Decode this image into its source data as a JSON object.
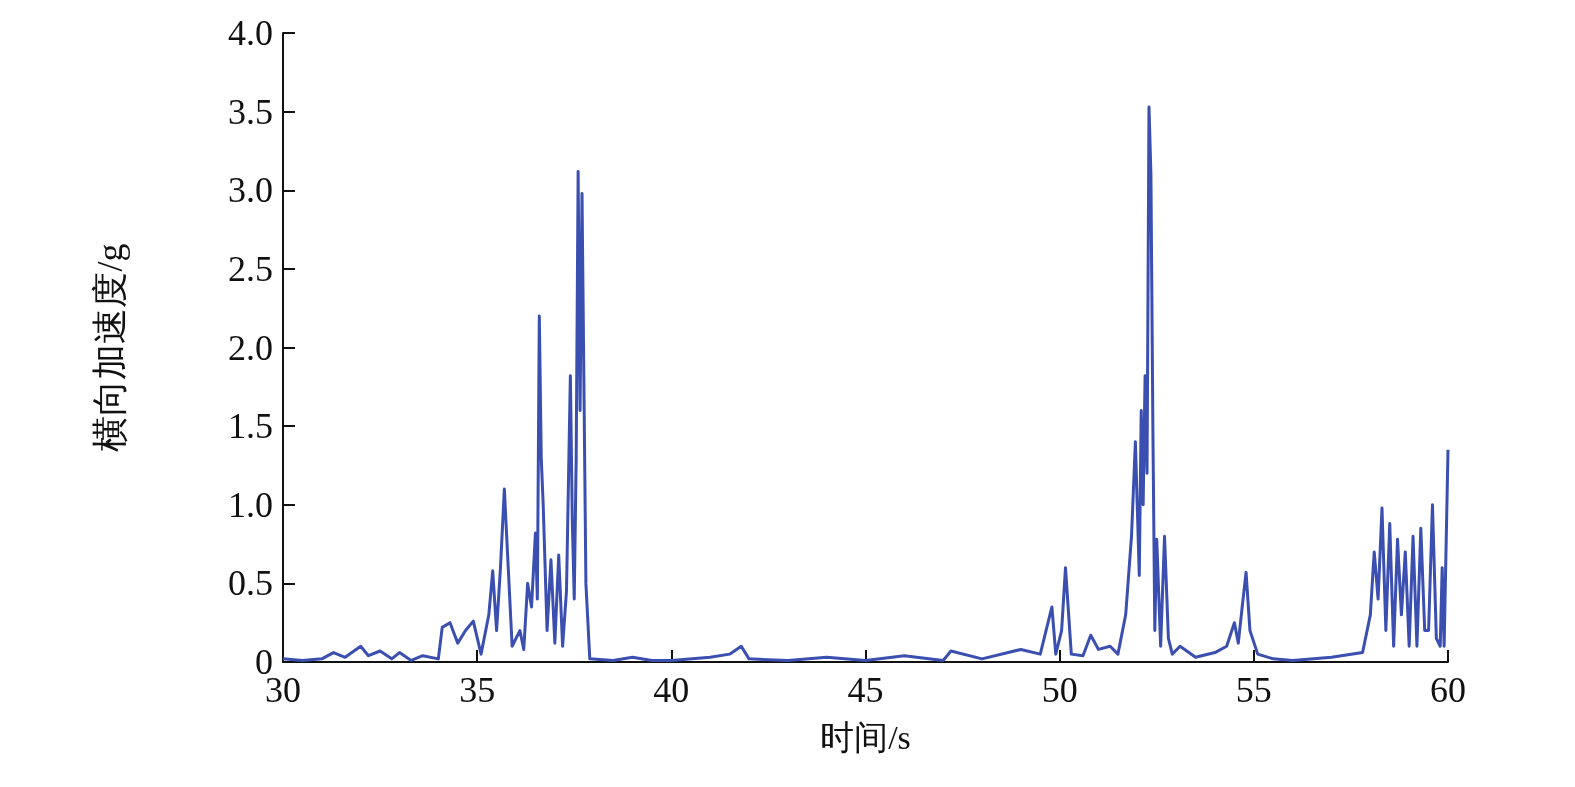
{
  "chart_data": {
    "type": "line",
    "xlabel": "时间/s",
    "ylabel": "横向加速度/g",
    "x": [
      30,
      30.5,
      31,
      31.3,
      31.6,
      32,
      32.2,
      32.5,
      32.8,
      33,
      33.3,
      33.6,
      34,
      34.1,
      34.3,
      34.5,
      34.7,
      34.9,
      35.1,
      35.3,
      35.4,
      35.5,
      35.6,
      35.7,
      35.8,
      35.9,
      36.1,
      36.2,
      36.3,
      36.4,
      36.5,
      36.55,
      36.6,
      36.65,
      36.7,
      36.8,
      36.9,
      37,
      37.1,
      37.2,
      37.3,
      37.4,
      37.45,
      37.5,
      37.55,
      37.6,
      37.65,
      37.7,
      37.8,
      37.9,
      38.5,
      39,
      39.5,
      40,
      41,
      41.5,
      41.8,
      42,
      43,
      44,
      45,
      46,
      47,
      47.2,
      48,
      49,
      49.5,
      49.7,
      49.8,
      49.9,
      50.05,
      50.15,
      50.3,
      50.6,
      50.8,
      51,
      51.3,
      51.5,
      51.7,
      51.85,
      51.95,
      52.05,
      52.1,
      52.15,
      52.2,
      52.25,
      52.3,
      52.35,
      52.4,
      52.45,
      52.5,
      52.6,
      52.7,
      52.8,
      52.9,
      53.1,
      53.5,
      54,
      54.3,
      54.5,
      54.6,
      54.7,
      54.8,
      54.9,
      55.1,
      55.5,
      56,
      57,
      57.8,
      58,
      58.1,
      58.2,
      58.3,
      58.4,
      58.5,
      58.6,
      58.7,
      58.8,
      58.9,
      59,
      59.1,
      59.2,
      59.3,
      59.4,
      59.5,
      59.6,
      59.7,
      59.8,
      59.85,
      59.9,
      60
    ],
    "series": [
      {
        "color": "#3a4fb0",
        "values": [
          0.02,
          0.01,
          0.02,
          0.06,
          0.03,
          0.1,
          0.04,
          0.07,
          0.02,
          0.06,
          0.01,
          0.04,
          0.02,
          0.22,
          0.25,
          0.12,
          0.2,
          0.26,
          0.05,
          0.3,
          0.58,
          0.2,
          0.6,
          1.1,
          0.6,
          0.1,
          0.2,
          0.08,
          0.5,
          0.35,
          0.82,
          0.4,
          2.2,
          1.3,
          1.0,
          0.2,
          0.65,
          0.12,
          0.68,
          0.1,
          0.45,
          1.82,
          0.9,
          0.4,
          1.3,
          3.12,
          1.6,
          2.98,
          0.5,
          0.02,
          0.01,
          0.03,
          0.01,
          0.01,
          0.03,
          0.05,
          0.1,
          0.02,
          0.01,
          0.03,
          0.01,
          0.04,
          0.01,
          0.07,
          0.02,
          0.08,
          0.05,
          0.25,
          0.35,
          0.05,
          0.2,
          0.6,
          0.05,
          0.04,
          0.17,
          0.08,
          0.1,
          0.05,
          0.3,
          0.8,
          1.4,
          0.55,
          1.6,
          1.0,
          1.82,
          1.2,
          3.53,
          3.1,
          1.5,
          0.2,
          0.78,
          0.1,
          0.8,
          0.15,
          0.05,
          0.1,
          0.03,
          0.06,
          0.1,
          0.25,
          0.12,
          0.35,
          0.57,
          0.2,
          0.05,
          0.02,
          0.01,
          0.03,
          0.06,
          0.3,
          0.7,
          0.4,
          0.98,
          0.2,
          0.88,
          0.1,
          0.78,
          0.3,
          0.7,
          0.1,
          0.8,
          0.1,
          0.85,
          0.2,
          0.2,
          1.0,
          0.15,
          0.1,
          0.6,
          0.1,
          1.35
        ]
      }
    ],
    "xlim": [
      30,
      60
    ],
    "xticks": [
      30,
      35,
      40,
      45,
      50,
      55,
      60
    ],
    "ylim": [
      0,
      4
    ],
    "yticks": [
      0,
      {
        "value": 0.5,
        "label": "0.5"
      },
      {
        "value": 1,
        "label": "1.0"
      },
      {
        "value": 1.5,
        "label": "1.5"
      },
      {
        "value": 2,
        "label": "2.0"
      },
      {
        "value": 2.5,
        "label": "2.5"
      },
      {
        "value": 3,
        "label": "3.0"
      },
      {
        "value": 3.5,
        "label": "3.5"
      },
      {
        "value": 4,
        "label": "4.0"
      }
    ],
    "grid": false,
    "marker": "none",
    "line_style": "solid"
  }
}
